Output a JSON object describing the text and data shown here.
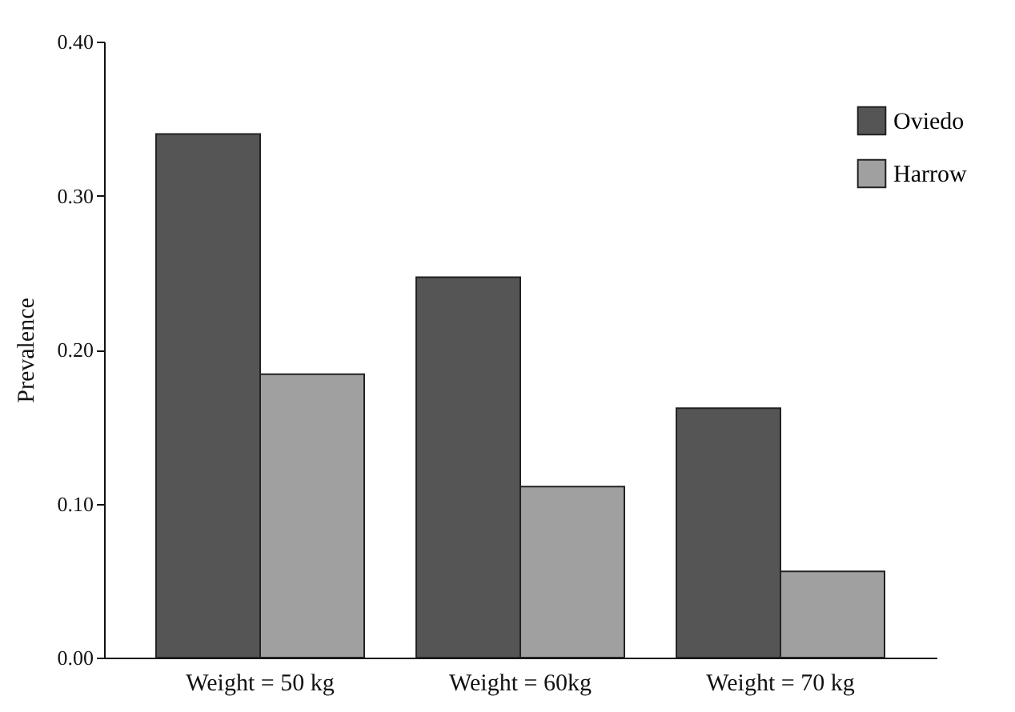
{
  "chart_data": {
    "type": "bar",
    "ylabel": "Prevalence",
    "categories": [
      "Weight = 50 kg",
      "Weight = 60kg",
      "Weight = 70 kg"
    ],
    "series": [
      {
        "name": "Oviedo",
        "color": "#555555",
        "values": [
          0.34,
          0.247,
          0.162
        ]
      },
      {
        "name": "Harrow",
        "color": "#a0a0a0",
        "values": [
          0.184,
          0.111,
          0.056
        ]
      }
    ],
    "ylim": [
      0,
      0.4
    ],
    "yticks": [
      {
        "value": 0,
        "label": "0.00"
      },
      {
        "value": 0.1,
        "label": "0.10"
      },
      {
        "value": 0.2,
        "label": "0.20"
      },
      {
        "value": 0.3,
        "label": "0.30"
      },
      {
        "value": 0.4,
        "label": "0.40"
      }
    ],
    "grid": false,
    "legend": "top right"
  }
}
